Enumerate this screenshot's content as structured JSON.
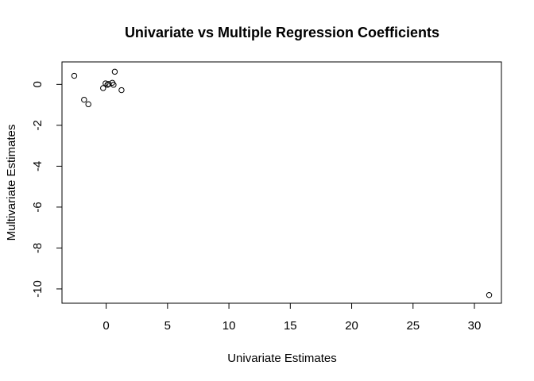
{
  "chart_data": {
    "type": "scatter",
    "title": "Univariate vs Multiple Regression Coefficients",
    "xlabel": "Univariate Estimates",
    "ylabel": "Multivariate Estimates",
    "xlim": [
      -3.6,
      32.2
    ],
    "ylim": [
      -10.7,
      1.1
    ],
    "x_ticks": [
      0,
      5,
      10,
      15,
      20,
      25,
      30
    ],
    "y_ticks": [
      0,
      -2,
      -4,
      -6,
      -8,
      -10
    ],
    "grid": false,
    "legend": "none",
    "point_style": "open-circle",
    "points": [
      {
        "x": -2.6,
        "y": 0.42
      },
      {
        "x": -1.8,
        "y": -0.75
      },
      {
        "x": -1.45,
        "y": -0.97
      },
      {
        "x": -0.25,
        "y": -0.18
      },
      {
        "x": -0.05,
        "y": 0.05
      },
      {
        "x": 0.1,
        "y": -0.02
      },
      {
        "x": 0.2,
        "y": 0.02
      },
      {
        "x": 0.5,
        "y": 0.08
      },
      {
        "x": 0.6,
        "y": -0.02
      },
      {
        "x": 0.7,
        "y": 0.62
      },
      {
        "x": 1.25,
        "y": -0.28
      },
      {
        "x": 31.2,
        "y": -10.3
      }
    ]
  }
}
